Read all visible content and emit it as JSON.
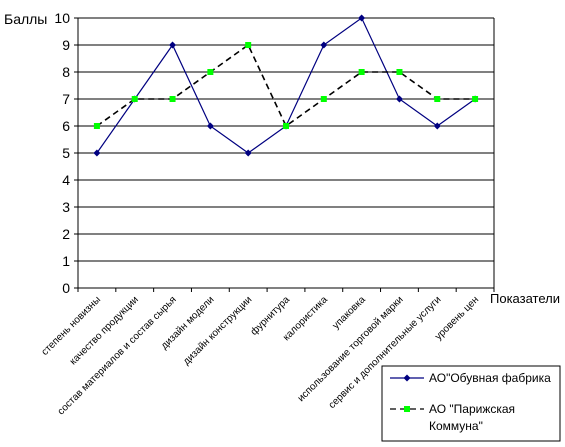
{
  "chart_data": {
    "type": "line",
    "title": "",
    "ylabel": "Баллы",
    "xlabel": "Показатели",
    "ylim": [
      0,
      10
    ],
    "ytick_step": 1,
    "grid": true,
    "legend_position": "bottom-right",
    "categories": [
      "степень новизны",
      "качество продукции",
      "состав материалов и состав сырья",
      "дизайн модели",
      "дизайн конструкции",
      "фурнитура",
      "калористика",
      "упаковка",
      "использование торговой марки",
      "сервис и дополнительные услуги",
      "уровень цен"
    ],
    "series": [
      {
        "name": "АО\"Обувная фабрика",
        "values": [
          5,
          7,
          9,
          6,
          5,
          6,
          9,
          10,
          7,
          6,
          7
        ],
        "color": "#000080",
        "line": "solid",
        "marker": "diamond"
      },
      {
        "name": "АО \"Парижская Коммуна\"",
        "values": [
          6,
          7,
          7,
          8,
          9,
          6,
          7,
          8,
          8,
          7,
          7
        ],
        "color": "#000000",
        "marker_color": "#00ff00",
        "line": "dashed",
        "marker": "square"
      }
    ]
  }
}
